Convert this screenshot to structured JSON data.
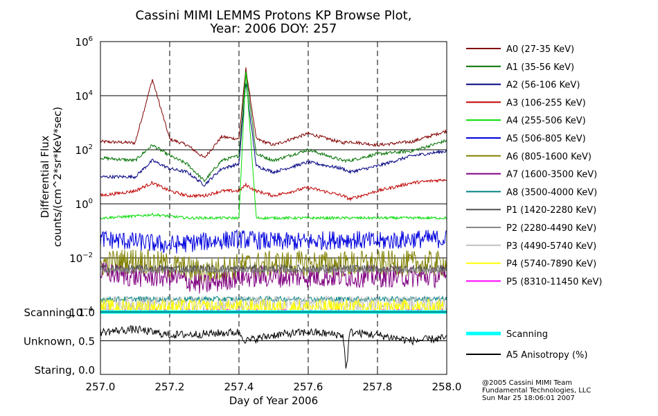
{
  "chart_data": {
    "type": "line",
    "title": "Cassini MIMI LEMMS Protons KP Browse Plot,",
    "subtitle": "Year: 2006 DOY: 257",
    "xlabel": "Day of Year 2006",
    "ylabel": "Differential Flux",
    "ylabel2": "counts/(cm^2*sr*KeV*sec)",
    "xlim": [
      257.0,
      258.0
    ],
    "ylim": [
      0.0001,
      1000000
    ],
    "yscale": "log",
    "x_ticks": [
      "257.0",
      "257.2",
      "257.4",
      "257.6",
      "257.8",
      "258.0"
    ],
    "y_ticks": [
      {
        "base": "10",
        "exp": "6"
      },
      {
        "base": "10",
        "exp": "4"
      },
      {
        "base": "10",
        "exp": "2"
      },
      {
        "base": "10",
        "exp": "0"
      },
      {
        "base": "10",
        "exp": "−2"
      },
      {
        "base": "10",
        "exp": "−4"
      }
    ],
    "vertical_gridlines_dashed": [
      257.2,
      257.4,
      257.6,
      257.8
    ],
    "horizontal_gridlines": [
      0.01,
      1,
      100,
      10000
    ],
    "legend_position": "right",
    "series": [
      {
        "name": "A0 (27-35 KeV)",
        "color": "#800000",
        "x": [
          257.0,
          257.1,
          257.15,
          257.2,
          257.25,
          257.3,
          257.35,
          257.4,
          257.42,
          257.45,
          257.5,
          257.6,
          257.7,
          257.72,
          257.8,
          257.9,
          258.0
        ],
        "y": [
          200,
          180,
          40000,
          250,
          150,
          50,
          300,
          250,
          100000,
          250,
          150,
          400,
          180,
          200,
          150,
          200,
          500
        ]
      },
      {
        "name": "A1 (35-56 KeV)",
        "color": "#007000",
        "x": [
          257.0,
          257.1,
          257.15,
          257.2,
          257.25,
          257.3,
          257.35,
          257.4,
          257.42,
          257.45,
          257.5,
          257.6,
          257.7,
          257.72,
          257.8,
          257.9,
          258.0
        ],
        "y": [
          50,
          40,
          150,
          60,
          30,
          7,
          40,
          60,
          80000,
          70,
          40,
          100,
          40,
          40,
          70,
          90,
          220
        ]
      },
      {
        "name": "A2 (56-106 KeV)",
        "color": "#000080",
        "x": [
          257.0,
          257.1,
          257.15,
          257.2,
          257.25,
          257.3,
          257.35,
          257.4,
          257.42,
          257.45,
          257.5,
          257.6,
          257.7,
          257.72,
          257.8,
          257.9,
          258.0
        ],
        "y": [
          10,
          10,
          40,
          20,
          15,
          5,
          20,
          30,
          30000,
          25,
          15,
          35,
          20,
          15,
          25,
          60,
          90
        ]
      },
      {
        "name": "A3 (106-255 KeV)",
        "color": "#c00000",
        "x": [
          257.0,
          257.1,
          257.15,
          257.2,
          257.25,
          257.3,
          257.35,
          257.4,
          257.42,
          257.45,
          257.5,
          257.6,
          257.7,
          257.72,
          257.8,
          257.9,
          258.0
        ],
        "y": [
          2,
          3,
          6,
          3,
          2,
          2,
          3,
          3,
          5,
          3,
          2,
          4,
          2,
          1.5,
          3,
          6,
          8
        ]
      },
      {
        "name": "A4 (255-506 KeV)",
        "color": "#00dd00",
        "x": [
          257.0,
          257.1,
          257.15,
          257.2,
          257.25,
          257.3,
          257.35,
          257.4,
          257.42,
          257.45,
          257.5,
          257.6,
          257.7,
          257.72,
          257.8,
          257.9,
          258.0
        ],
        "y": [
          0.3,
          0.35,
          0.4,
          0.35,
          0.3,
          0.3,
          0.3,
          0.3,
          80000,
          0.3,
          0.3,
          0.3,
          0.3,
          0.3,
          0.3,
          0.3,
          0.3
        ]
      },
      {
        "name": "A5 (506-805 KeV)",
        "color": "#0000dd",
        "x": [
          257.0,
          257.1,
          257.2,
          257.3,
          257.4,
          257.5,
          257.6,
          257.7,
          257.8,
          257.9,
          258.0
        ],
        "y": [
          0.05,
          0.04,
          0.03,
          0.04,
          0.05,
          0.04,
          0.04,
          0.05,
          0.04,
          0.05,
          0.05
        ]
      },
      {
        "name": "A6 (805-1600 KeV)",
        "color": "#808000",
        "x": [
          257.0,
          257.1,
          257.2,
          257.3,
          257.4,
          257.5,
          257.6,
          257.7,
          257.8,
          257.9,
          258.0
        ],
        "y": [
          0.006,
          0.008,
          0.005,
          0.003,
          0.005,
          0.006,
          0.006,
          0.006,
          0.006,
          0.006,
          0.006
        ]
      },
      {
        "name": "A7 (1600-3500 KeV)",
        "color": "#800080",
        "x": [
          257.0,
          257.1,
          257.2,
          257.3,
          257.4,
          257.5,
          257.6,
          257.7,
          257.8,
          257.9,
          258.0
        ],
        "y": [
          0.003,
          0.002,
          0.002,
          0.001,
          0.002,
          0.002,
          0.002,
          0.002,
          0.002,
          0.002,
          0.002
        ]
      },
      {
        "name": "A8 (3500-4000 KeV)",
        "color": "#008080",
        "x": [
          257.0,
          257.5,
          258.0
        ],
        "y": [
          0.0003,
          0.0003,
          0.0003
        ]
      },
      {
        "name": "P1 (1420-2280 KeV)",
        "color": "#505050",
        "x": [
          257.0,
          257.1,
          257.2,
          257.3,
          257.4,
          257.5,
          257.6,
          257.7,
          257.8,
          257.9,
          258.0
        ],
        "y": [
          0.004,
          0.004,
          0.004,
          0.004,
          0.004,
          0.004,
          0.004,
          0.004,
          0.004,
          0.004,
          0.004
        ]
      },
      {
        "name": "P2 (2280-4490 KeV)",
        "color": "#888888",
        "x": [
          257.0,
          257.1,
          257.2,
          257.3,
          257.4,
          257.5,
          257.6,
          257.7,
          257.8,
          257.9,
          258.0
        ],
        "y": [
          0.0035,
          0.0035,
          0.0035,
          0.0035,
          0.0035,
          0.0035,
          0.0035,
          0.0035,
          0.0035,
          0.0035,
          0.0035
        ]
      },
      {
        "name": "P3 (4490-5740 KeV)",
        "color": "#c0c0c0",
        "x": [
          257.0,
          257.2,
          257.4,
          257.6,
          257.8,
          258.0
        ],
        "y": [
          0.0002,
          0.0002,
          0.0002,
          0.0002,
          0.0002,
          0.0002
        ]
      },
      {
        "name": "P4 (5740-7890 KeV)",
        "color": "#ffff00",
        "x": [
          257.0,
          257.2,
          257.4,
          257.6,
          257.8,
          258.0
        ],
        "y": [
          0.00015,
          0.00015,
          0.00015,
          0.00015,
          0.00015,
          0.00015
        ]
      },
      {
        "name": "P5 (8310-11450 KeV)",
        "color": "#ff00ff",
        "x": [
          257.0,
          258.0
        ],
        "y": [
          0.0001,
          0.0001
        ]
      }
    ],
    "lower_panel": {
      "y_ticks": [
        "Scanning, 1.0",
        "Unknown, 0.5",
        "Staring, 0.0"
      ],
      "ylim": [
        0.0,
        1.0
      ],
      "series": [
        {
          "name": "Scanning",
          "color": "#00ffff",
          "x": [
            257.0,
            258.0
          ],
          "y": [
            1.0,
            1.0
          ]
        },
        {
          "name": "A5 Anisotropy (%)",
          "color": "#000000",
          "x": [
            257.0,
            257.1,
            257.2,
            257.3,
            257.4,
            257.42,
            257.5,
            257.6,
            257.7,
            257.71,
            257.72,
            257.8,
            257.9,
            258.0
          ],
          "y": [
            0.65,
            0.7,
            0.6,
            0.62,
            0.65,
            0.5,
            0.6,
            0.65,
            0.6,
            0.0,
            0.65,
            0.6,
            0.5,
            0.55
          ]
        }
      ]
    }
  },
  "footer": {
    "line1": "@2005 Cassini MIMI Team",
    "line2": "Fundamental Technologies, LLC",
    "line3": "Sun Mar 25 18:06:01 2007"
  }
}
